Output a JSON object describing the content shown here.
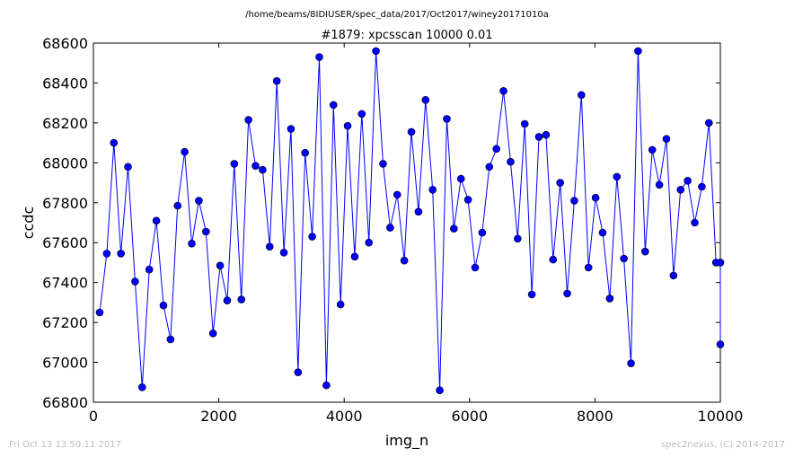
{
  "chart_data": {
    "type": "line",
    "suptitle": "/home/beams/8IDIUSER/spec_data/2017/Oct2017/winey20171010a",
    "title": "#1879: xpcsscan 10000 0.01",
    "xlabel": "img_n",
    "ylabel": "ccdc",
    "xlim": [
      0,
      10000
    ],
    "ylim": [
      66800,
      68600
    ],
    "xticks": [
      0,
      2000,
      4000,
      6000,
      8000,
      10000
    ],
    "yticks": [
      66800,
      67000,
      67200,
      67400,
      67600,
      67800,
      68000,
      68200,
      68400,
      68600
    ],
    "grid": false,
    "line_color": "#0000ff",
    "marker_color": "#0000ff",
    "series": [
      {
        "x": [
          100,
          213,
          326,
          439,
          552,
          665,
          778,
          891,
          1004,
          1117,
          1230,
          1343,
          1456,
          1569,
          1682,
          1795,
          1908,
          2021,
          2134,
          2247,
          2360,
          2473,
          2586,
          2699,
          2812,
          2925,
          3038,
          3151,
          3264,
          3377,
          3490,
          3603,
          3716,
          3829,
          3942,
          4055,
          4168,
          4281,
          4394,
          4507,
          4620,
          4733,
          4846,
          4959,
          5072,
          5185,
          5298,
          5411,
          5524,
          5637,
          5750,
          5863,
          5976,
          6089,
          6202,
          6315,
          6428,
          6541,
          6654,
          6767,
          6880,
          6993,
          7106,
          7219,
          7332,
          7445,
          7558,
          7671,
          7784,
          7897,
          8010,
          8123,
          8236,
          8349,
          8462,
          8575,
          8688,
          8801,
          8914,
          9027,
          9140,
          9253,
          9366,
          9479,
          9592,
          9705,
          9818,
          9931,
          10000,
          10000
        ],
        "y": [
          67250,
          67545,
          68100,
          67545,
          67980,
          67405,
          66875,
          67465,
          67710,
          67285,
          67115,
          67785,
          68055,
          67595,
          67810,
          67655,
          67145,
          67485,
          67310,
          67995,
          67315,
          68215,
          67985,
          67965,
          67580,
          68410,
          67550,
          68170,
          66950,
          68050,
          67630,
          68530,
          66885,
          68290,
          67290,
          68185,
          67530,
          68245,
          67600,
          68560,
          67995,
          67675,
          67840,
          67510,
          68155,
          67755,
          68315,
          67865,
          66860,
          68220,
          67670,
          67920,
          67815,
          67475,
          67650,
          67980,
          68070,
          68360,
          68005,
          67620,
          68195,
          67340,
          68130,
          68140,
          67515,
          67900,
          67345,
          67810,
          68340,
          67475,
          67825,
          67650,
          67320,
          67930,
          67520,
          66995,
          68560,
          67555,
          68065,
          67890,
          68120,
          67435,
          67865,
          67910,
          67700,
          67880,
          68200,
          67500,
          67500,
          67090
        ]
      }
    ]
  },
  "footer": {
    "left": "Fri Oct 13 13:50:11 2017",
    "right": "spec2nexus, (C) 2014-2017"
  }
}
